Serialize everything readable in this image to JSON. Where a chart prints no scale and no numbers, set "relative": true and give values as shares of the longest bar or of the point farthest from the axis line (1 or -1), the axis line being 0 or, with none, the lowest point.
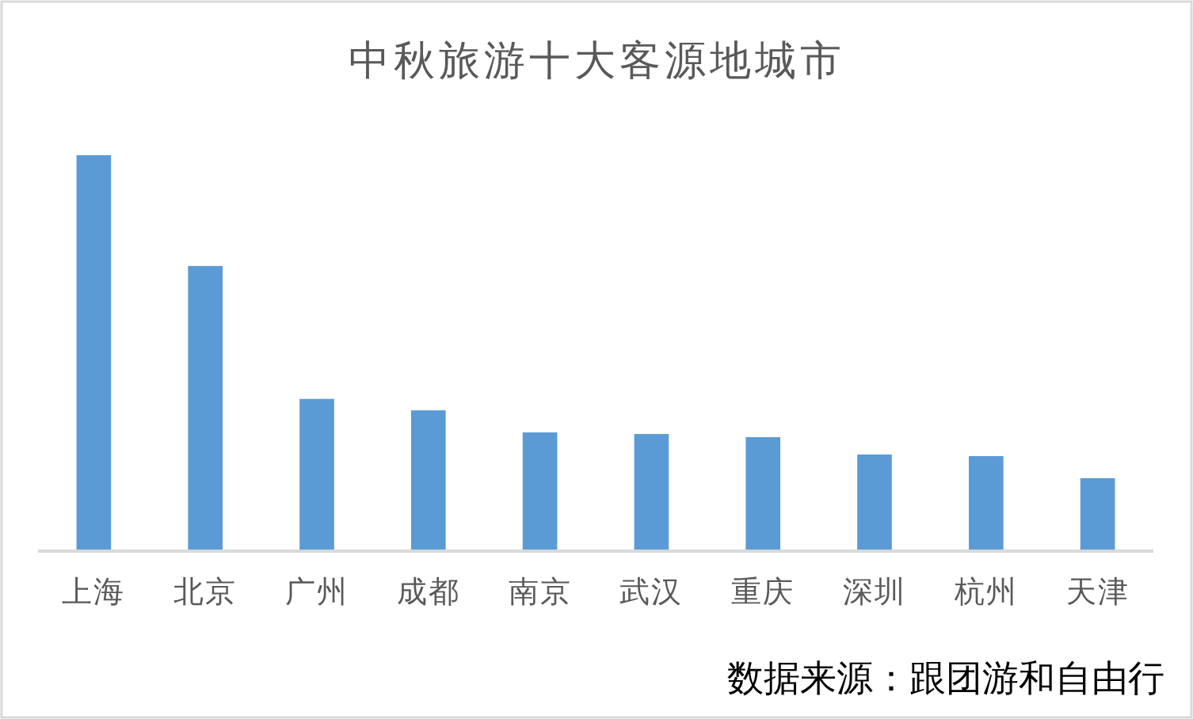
{
  "chart_data": {
    "type": "bar",
    "title": "中秋旅游十大客源地城市",
    "categories": [
      "上海",
      "北京",
      "广州",
      "成都",
      "南京",
      "武汉",
      "重庆",
      "深圳",
      "杭州",
      "天津"
    ],
    "values": [
      1,
      0.719,
      0.382,
      0.353,
      0.297,
      0.293,
      0.285,
      0.241,
      0.237,
      0.181
    ],
    "color": "#5b9bd5",
    "relative": true,
    "annotations": [
      "数据来源：跟团游和自由行"
    ]
  }
}
